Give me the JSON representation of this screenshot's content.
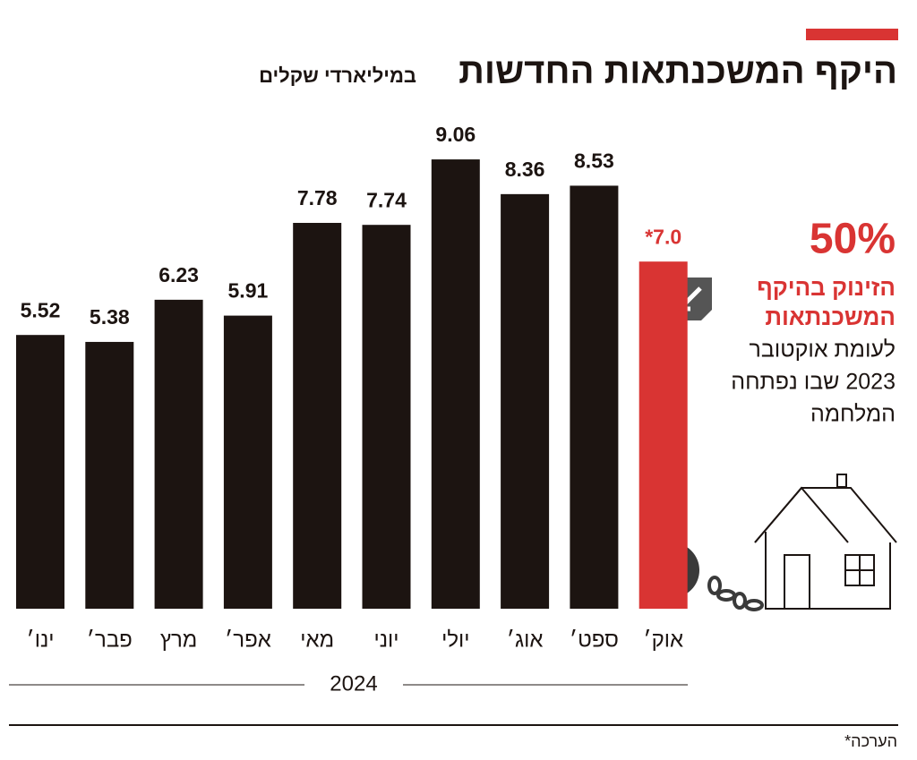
{
  "chart_data": {
    "type": "bar",
    "title": "היקף המשכנתאות החדשות",
    "subtitle": "במיליארדי שקלים",
    "categories": [
      "ינו׳",
      "פבר׳",
      "מרץ",
      "אפר׳",
      "מאי",
      "יוני",
      "יולי",
      "אוג׳",
      "ספט׳",
      "אוק׳"
    ],
    "values": [
      5.52,
      5.38,
      6.23,
      5.91,
      7.78,
      7.74,
      9.06,
      8.36,
      8.53,
      7.0
    ],
    "value_labels": [
      "5.52",
      "5.38",
      "6.23",
      "5.91",
      "7.78",
      "7.74",
      "9.06",
      "8.36",
      "8.53",
      "*7.0"
    ],
    "colors": [
      "#1c1411",
      "#1c1411",
      "#1c1411",
      "#1c1411",
      "#1c1411",
      "#1c1411",
      "#1c1411",
      "#1c1411",
      "#1c1411",
      "#d93433"
    ],
    "label_colors": [
      "#1c1411",
      "#1c1411",
      "#1c1411",
      "#1c1411",
      "#1c1411",
      "#1c1411",
      "#1c1411",
      "#1c1411",
      "#1c1411",
      "#d93433"
    ],
    "x_group_label": "2024",
    "annotation": {
      "headline": "50%",
      "highlight_lines": [
        "הזינוק בהיקף",
        "המשכנתאות"
      ],
      "lines": [
        "לעומת אוקטובר",
        "2023 שבו נפתחה",
        "המלחמה"
      ]
    },
    "footnote": "*הערכה"
  }
}
